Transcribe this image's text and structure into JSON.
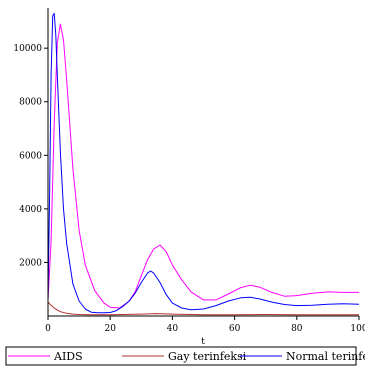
{
  "chart_data": {
    "type": "line",
    "title": "",
    "xlabel": "t",
    "ylabel": "",
    "xlim": [
      0,
      100
    ],
    "ylim": [
      0,
      11500
    ],
    "x_ticks": [
      0,
      20,
      40,
      60,
      80,
      100
    ],
    "x_tick_labels": [
      "0",
      "20",
      "40",
      "60",
      "80",
      "100"
    ],
    "y_ticks": [
      2000,
      4000,
      6000,
      8000,
      10000
    ],
    "y_tick_labels": [
      "2000",
      "4000",
      "6000",
      "8000",
      "10000"
    ],
    "grid": false,
    "legend_position": "bottom",
    "series": [
      {
        "name": "AIDS",
        "color": "#ff00ff",
        "x": [
          0,
          1,
          2,
          3,
          4,
          5,
          6,
          8,
          10,
          12,
          15,
          18,
          20,
          23,
          26,
          28,
          30,
          32,
          34,
          36,
          38,
          40,
          43,
          46,
          50,
          54,
          58,
          62,
          65,
          68,
          72,
          76,
          80,
          85,
          90,
          95,
          100
        ],
        "y": [
          600,
          2800,
          7200,
          10200,
          10900,
          10300,
          8800,
          5500,
          3200,
          1900,
          950,
          480,
          330,
          300,
          550,
          900,
          1500,
          2100,
          2500,
          2650,
          2400,
          1900,
          1350,
          900,
          600,
          600,
          820,
          1060,
          1150,
          1080,
          880,
          740,
          760,
          850,
          900,
          880,
          880
        ]
      },
      {
        "name": "Gay terinfeksi",
        "color": "#b03030",
        "x": [
          0,
          1,
          2,
          3,
          4,
          6,
          8,
          10,
          14,
          20,
          30,
          35,
          40,
          50,
          60,
          70,
          80,
          90,
          100
        ],
        "y": [
          520,
          400,
          300,
          220,
          160,
          100,
          70,
          55,
          45,
          45,
          70,
          90,
          70,
          45,
          50,
          55,
          45,
          45,
          45
        ]
      },
      {
        "name": "Normal terinfeksi",
        "color": "#0000ff",
        "x": [
          0,
          0.5,
          1,
          1.5,
          2,
          2.5,
          3,
          4,
          5,
          6,
          8,
          10,
          12,
          14,
          16,
          18,
          20,
          22,
          24,
          26,
          28,
          30,
          32,
          33,
          34,
          36,
          38,
          40,
          43,
          46,
          50,
          54,
          58,
          62,
          65,
          68,
          72,
          76,
          80,
          85,
          90,
          95,
          100
        ],
        "y": [
          600,
          4500,
          9000,
          11200,
          11300,
          10500,
          9000,
          6100,
          4000,
          2700,
          1200,
          560,
          260,
          140,
          120,
          120,
          130,
          200,
          350,
          550,
          850,
          1250,
          1600,
          1680,
          1600,
          1250,
          800,
          480,
          300,
          230,
          260,
          390,
          560,
          680,
          700,
          640,
          520,
          430,
          390,
          400,
          440,
          460,
          440
        ]
      }
    ]
  }
}
